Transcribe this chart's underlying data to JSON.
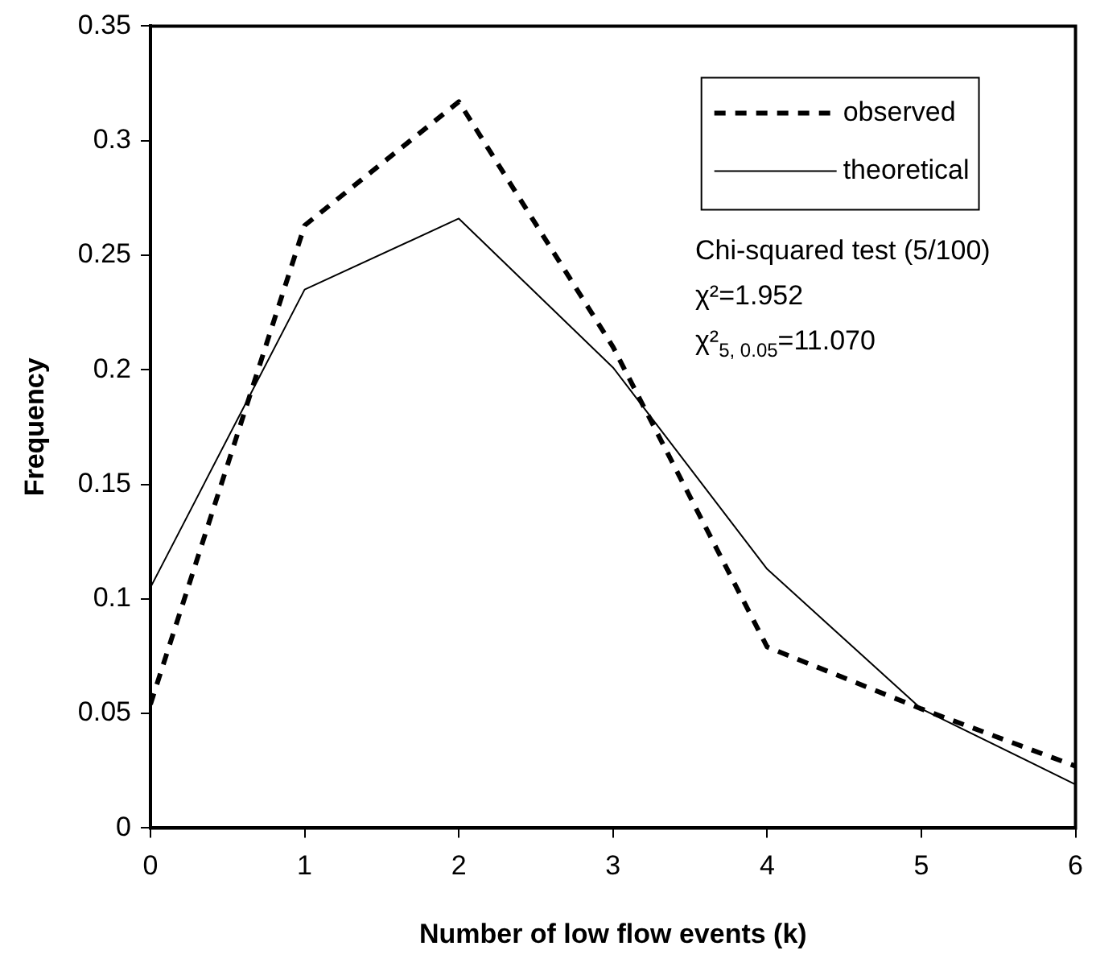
{
  "chart_data": {
    "type": "line",
    "xlabel": "Number of low flow events (k)",
    "ylabel": "Frequency",
    "x": [
      0,
      1,
      2,
      3,
      4,
      5,
      6
    ],
    "series": [
      {
        "name": "observed",
        "color": "#000000",
        "line_style": "dashed",
        "values": [
          0.054,
          0.263,
          0.317,
          0.21,
          0.079,
          0.052,
          0.027
        ]
      },
      {
        "name": "theoretical",
        "color": "#000000",
        "line_style": "solid",
        "values": [
          0.105,
          0.235,
          0.266,
          0.201,
          0.113,
          0.052,
          0.019
        ]
      }
    ],
    "xlim": [
      0,
      6
    ],
    "xticks": [
      0,
      1,
      2,
      3,
      4,
      5,
      6
    ],
    "ylim": [
      0,
      0.35
    ],
    "yticks": [
      0,
      0.05,
      0.1,
      0.15,
      0.2,
      0.25,
      0.3,
      0.35
    ],
    "grid": false,
    "legend": "top right",
    "marker": "none",
    "annotations": [
      "Chi-squared test (5/100)",
      "χ²=1.952",
      "χ²$_{5, 0.05}$=11.070"
    ]
  }
}
